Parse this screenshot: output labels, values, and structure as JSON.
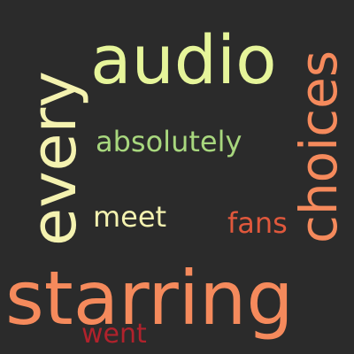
{
  "background": "#2b2b2b",
  "words": [
    {
      "id": "audio",
      "text": "audio",
      "color": "#e6f59a"
    },
    {
      "id": "every",
      "text": "every",
      "color": "#f4f2b0"
    },
    {
      "id": "choices",
      "text": "choices",
      "color": "#f58a5c"
    },
    {
      "id": "absolutely",
      "text": "absolutely",
      "color": "#a8d77e"
    },
    {
      "id": "meet",
      "text": "meet",
      "color": "#f4f2b0"
    },
    {
      "id": "fans",
      "text": "fans",
      "color": "#e0583c"
    },
    {
      "id": "starring",
      "text": "starring",
      "color": "#f58a5c"
    },
    {
      "id": "went",
      "text": "went",
      "color": "#b0222c"
    }
  ]
}
